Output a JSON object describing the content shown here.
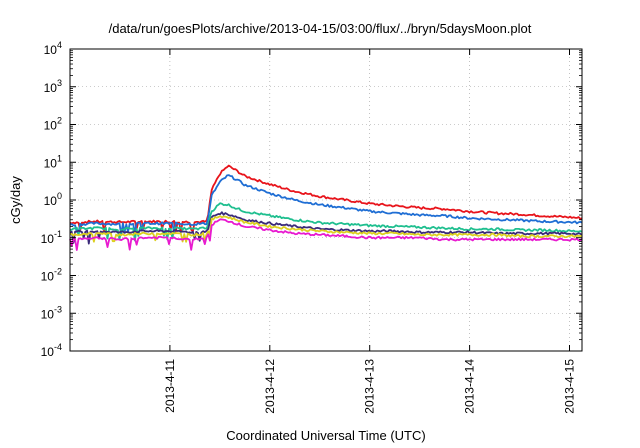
{
  "chart_data": {
    "type": "line",
    "title": "/data/run/goesPlots/archive/2013-04-15/03:00/flux/../bryn/5daysMoon.plot",
    "xlabel": "Coordinated Universal Time (UTC)",
    "ylabel": "cGy/day",
    "yscale": "log",
    "ylim": [
      0.0001,
      10000
    ],
    "yticks": [
      {
        "value": 0.0001,
        "base": "10",
        "exp": "-4"
      },
      {
        "value": 0.001,
        "base": "10",
        "exp": "-3"
      },
      {
        "value": 0.01,
        "base": "10",
        "exp": "-2"
      },
      {
        "value": 0.1,
        "base": "10",
        "exp": "-1"
      },
      {
        "value": 1,
        "base": "10",
        "exp": "0"
      },
      {
        "value": 10,
        "base": "10",
        "exp": "1"
      },
      {
        "value": 100,
        "base": "10",
        "exp": "2"
      },
      {
        "value": 1000,
        "base": "10",
        "exp": "3"
      },
      {
        "value": 10000,
        "base": "10",
        "exp": "4"
      }
    ],
    "xlim": [
      "2013-04-10 00:00",
      "2013-04-15 03:00"
    ],
    "xticks": [
      {
        "value": "2013-04-11 00:00",
        "label": "2013-4-11"
      },
      {
        "value": "2013-04-12 00:00",
        "label": "2013-4-12"
      },
      {
        "value": "2013-04-13 00:00",
        "label": "2013-4-13"
      },
      {
        "value": "2013-04-14 00:00",
        "label": "2013-4-14"
      },
      {
        "value": "2013-04-15 00:00",
        "label": "2013-4-15"
      }
    ],
    "grid": true,
    "x": [
      "2013-04-10 00:00",
      "2013-04-10 06:00",
      "2013-04-10 12:00",
      "2013-04-10 18:00",
      "2013-04-11 00:00",
      "2013-04-11 06:00",
      "2013-04-11 09:00",
      "2013-04-11 10:00",
      "2013-04-11 12:00",
      "2013-04-11 14:00",
      "2013-04-11 16:00",
      "2013-04-11 18:00",
      "2013-04-12 00:00",
      "2013-04-12 06:00",
      "2013-04-12 12:00",
      "2013-04-12 18:00",
      "2013-04-13 00:00",
      "2013-04-13 06:00",
      "2013-04-13 12:00",
      "2013-04-13 18:00",
      "2013-04-14 00:00",
      "2013-04-14 06:00",
      "2013-04-14 12:00",
      "2013-04-14 18:00",
      "2013-04-15 00:00",
      "2013-04-15 03:00"
    ],
    "series": [
      {
        "color": "#e8141b",
        "values": [
          0.25,
          0.27,
          0.26,
          0.27,
          0.27,
          0.26,
          0.27,
          1.8,
          5.0,
          8.0,
          6.0,
          4.3,
          2.6,
          1.7,
          1.25,
          1.0,
          0.8,
          0.7,
          0.62,
          0.58,
          0.5,
          0.45,
          0.42,
          0.38,
          0.35,
          0.33
        ]
      },
      {
        "color": "#1f6ed4",
        "values": [
          0.22,
          0.24,
          0.23,
          0.24,
          0.24,
          0.23,
          0.24,
          1.3,
          3.0,
          4.5,
          3.5,
          2.5,
          1.5,
          1.0,
          0.75,
          0.62,
          0.5,
          0.45,
          0.4,
          0.38,
          0.33,
          0.31,
          0.29,
          0.27,
          0.26,
          0.25
        ]
      },
      {
        "color": "#1fbf8f",
        "values": [
          0.17,
          0.18,
          0.17,
          0.18,
          0.18,
          0.17,
          0.18,
          0.5,
          0.8,
          0.75,
          0.6,
          0.5,
          0.38,
          0.3,
          0.25,
          0.23,
          0.21,
          0.2,
          0.19,
          0.18,
          0.17,
          0.17,
          0.16,
          0.16,
          0.15,
          0.15
        ]
      },
      {
        "color": "#3a2a7a",
        "values": [
          0.14,
          0.15,
          0.14,
          0.15,
          0.15,
          0.14,
          0.15,
          0.35,
          0.45,
          0.42,
          0.36,
          0.3,
          0.24,
          0.2,
          0.17,
          0.16,
          0.15,
          0.15,
          0.14,
          0.14,
          0.14,
          0.13,
          0.13,
          0.13,
          0.13,
          0.12
        ]
      },
      {
        "color": "#ddd020",
        "values": [
          0.12,
          0.13,
          0.12,
          0.13,
          0.13,
          0.12,
          0.13,
          0.3,
          0.38,
          0.35,
          0.3,
          0.26,
          0.2,
          0.17,
          0.15,
          0.14,
          0.13,
          0.13,
          0.12,
          0.12,
          0.12,
          0.12,
          0.11,
          0.11,
          0.11,
          0.11
        ]
      },
      {
        "color": "#e81ad0",
        "values": [
          0.09,
          0.1,
          0.09,
          0.1,
          0.1,
          0.09,
          0.1,
          0.22,
          0.3,
          0.28,
          0.24,
          0.2,
          0.16,
          0.13,
          0.12,
          0.11,
          0.1,
          0.1,
          0.1,
          0.09,
          0.09,
          0.09,
          0.09,
          0.09,
          0.09,
          0.09
        ]
      }
    ]
  }
}
